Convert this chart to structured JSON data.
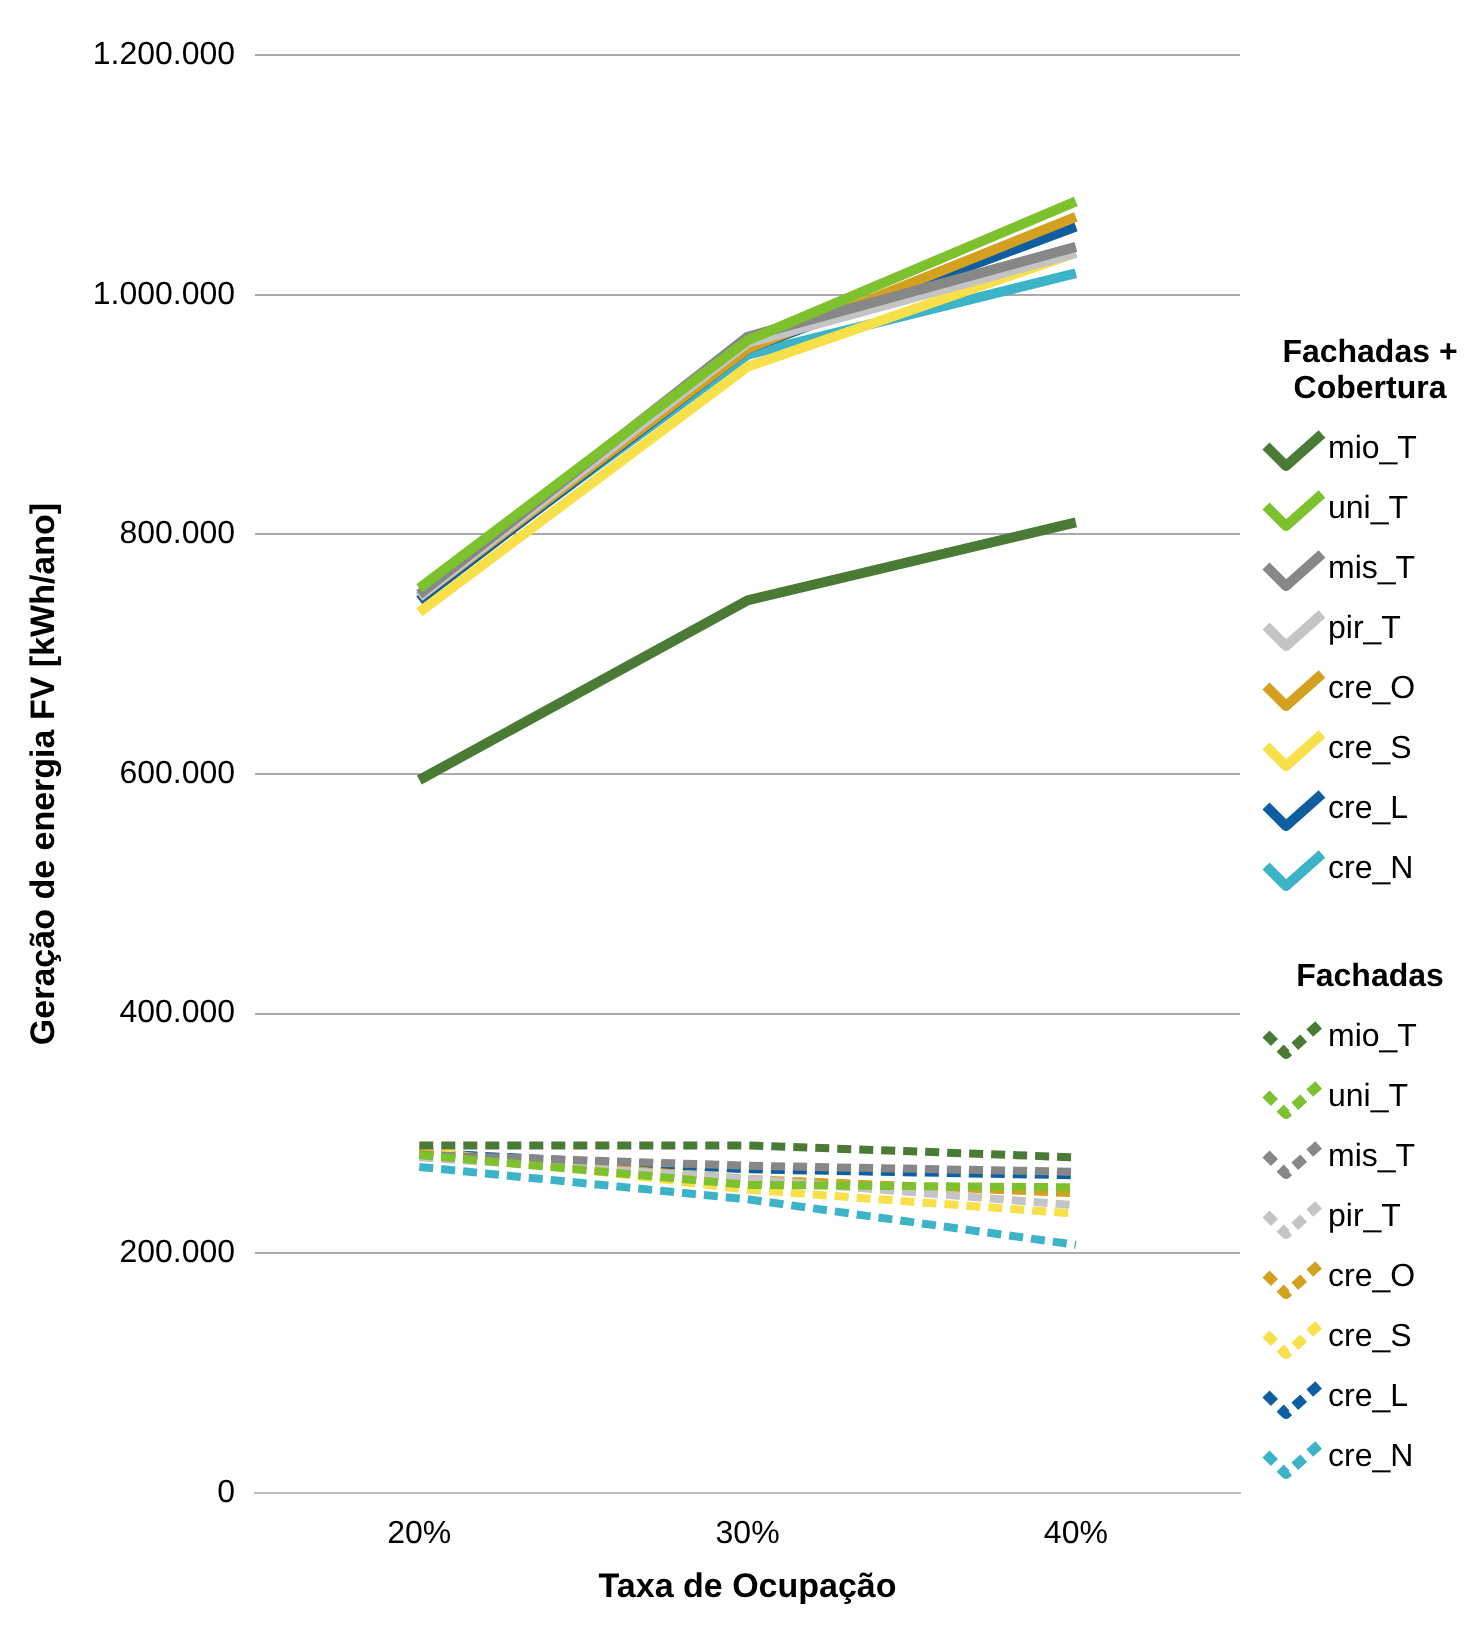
{
  "chart_data": {
    "type": "line",
    "xlabel": "Taxa de Ocupação",
    "ylabel": "Geração de energia FV [kWh/ano]",
    "legend_title": "Fachadas + Cobertura",
    "annotations": [
      "Fachadas"
    ],
    "categories": [
      "20%",
      "30%",
      "40%"
    ],
    "ylim": [
      0,
      1200000
    ],
    "yticks": [
      0,
      {
        "value": 200000,
        "label": "200.000"
      },
      {
        "value": 400000,
        "label": "400.000"
      },
      {
        "value": 600000,
        "label": "600.000"
      },
      {
        "value": 800000,
        "label": "800.000"
      },
      {
        "value": 1000000,
        "label": "1.000.000"
      },
      {
        "value": 1200000,
        "label": "1.200.000"
      }
    ],
    "grid": "y",
    "legend": "right",
    "marker": "none",
    "series": [
      {
        "name": "mio_T",
        "color": "#4a7a35",
        "values": [
          595000,
          745000,
          810000
        ]
      },
      {
        "name": "uni_T",
        "color": "#7dc12f",
        "values": [
          755000,
          962000,
          1078000
        ]
      },
      {
        "name": "mis_T",
        "color": "#878787",
        "values": [
          750000,
          965000,
          1040000
        ]
      },
      {
        "name": "pir_T",
        "color": "#c4c4c4",
        "values": [
          748000,
          960000,
          1035000
        ]
      },
      {
        "name": "cre_O",
        "color": "#d4a020",
        "values": [
          748000,
          955000,
          1065000
        ]
      },
      {
        "name": "cre_S",
        "color": "#f7e04a",
        "values": [
          735000,
          940000,
          1035000
        ]
      },
      {
        "name": "cre_L",
        "color": "#0f5fa0",
        "values": [
          745000,
          955000,
          1057000
        ]
      },
      {
        "name": "cre_N",
        "color": "#3db3c8",
        "values": [
          748000,
          950000,
          1018000
        ]
      },
      {
        "name": "mio_T",
        "color": "#4a7a35",
        "line_style": "dashed",
        "values": [
          290000,
          290000,
          280000
        ]
      },
      {
        "name": "uni_T",
        "color": "#7dc12f",
        "line_style": "dashed",
        "values": [
          282000,
          257000,
          255000
        ]
      },
      {
        "name": "mis_T",
        "color": "#878787",
        "line_style": "dashed",
        "values": [
          282000,
          273000,
          268000
        ]
      },
      {
        "name": "pir_T",
        "color": "#c4c4c4",
        "line_style": "dashed",
        "values": [
          280000,
          262000,
          240000
        ]
      },
      {
        "name": "cre_O",
        "color": "#d4a020",
        "line_style": "dashed",
        "values": [
          283000,
          262000,
          250000
        ]
      },
      {
        "name": "cre_S",
        "color": "#f7e04a",
        "line_style": "dashed",
        "values": [
          286000,
          253000,
          233000
        ]
      },
      {
        "name": "cre_L",
        "color": "#0f5fa0",
        "line_style": "dashed",
        "values": [
          284000,
          270000,
          265000
        ]
      },
      {
        "name": "cre_N",
        "color": "#3db3c8",
        "line_style": "dashed",
        "values": [
          272000,
          245000,
          207000
        ]
      }
    ]
  }
}
